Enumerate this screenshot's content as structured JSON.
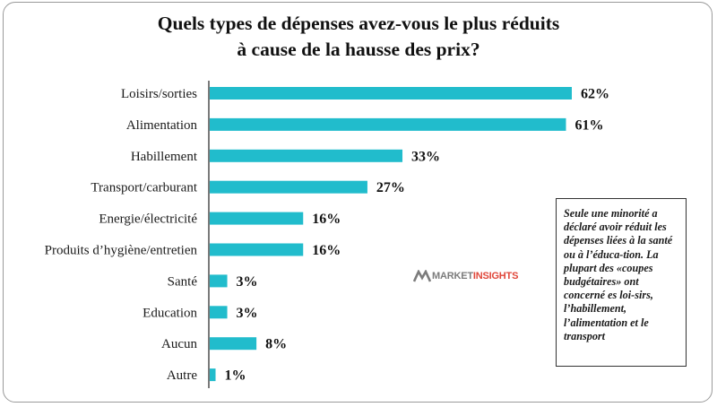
{
  "title_line1": "Quels types de dépenses avez-vous le plus réduits",
  "title_line2": "à cause de la hausse des prix?",
  "note": "Seule une minorité a déclaré avoir réduit les dépenses liées à la santé ou à l’éduca-tion. La plupart des «coupes budgétaires» ont concerné es loi-sirs, l’habillement, l’alimentation et le transport",
  "logo": {
    "market": "MARKET",
    "insights": "INSIGHTS"
  },
  "colors": {
    "bar": "#21bccc",
    "axis": "#222222"
  },
  "chart_data": {
    "type": "bar",
    "orientation": "horizontal",
    "title": "Quels types de dépenses avez-vous le plus réduits à cause de la hausse des prix?",
    "categories": [
      "Loisirs/sorties",
      "Alimentation",
      "Habillement",
      "Transport/carburant",
      "Energie/électricité",
      "Produits d’hygiène/entretien",
      "Santé",
      "Education",
      "Aucun",
      "Autre"
    ],
    "values": [
      62,
      61,
      33,
      27,
      16,
      16,
      3,
      3,
      8,
      1
    ],
    "value_labels": [
      "62%",
      "61%",
      "33%",
      "27%",
      "16%",
      "16%",
      "3%",
      "3%",
      "8%",
      "1%"
    ],
    "unit": "%",
    "xlim": [
      0,
      62
    ],
    "grid": false,
    "legend": "none"
  }
}
